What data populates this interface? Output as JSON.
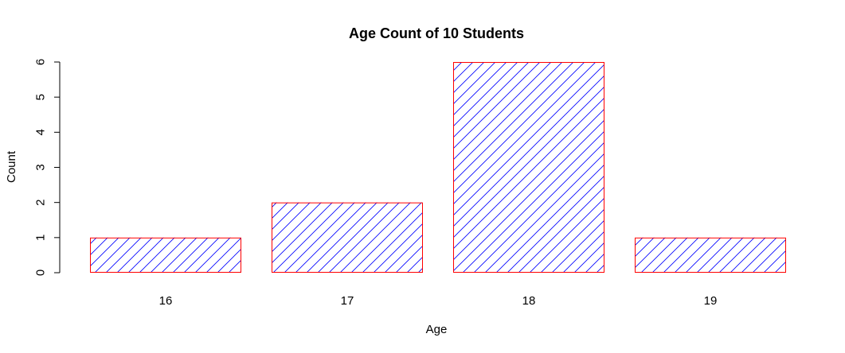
{
  "chart_data": {
    "type": "bar",
    "title": "Age Count of 10 Students",
    "xlabel": "Age",
    "ylabel": "Count",
    "categories": [
      "16",
      "17",
      "18",
      "19"
    ],
    "values": [
      1,
      2,
      6,
      1
    ],
    "ylim": [
      0,
      6
    ],
    "yticks": [
      0,
      1,
      2,
      3,
      4,
      5,
      6
    ],
    "grid": false,
    "legend": "none",
    "colors": {
      "bar_border": "#ff0000",
      "bar_hatch": "#0000ff",
      "axis": "#000000",
      "background": "#ffffff"
    },
    "bar_fill": "diagonal-hatch"
  }
}
